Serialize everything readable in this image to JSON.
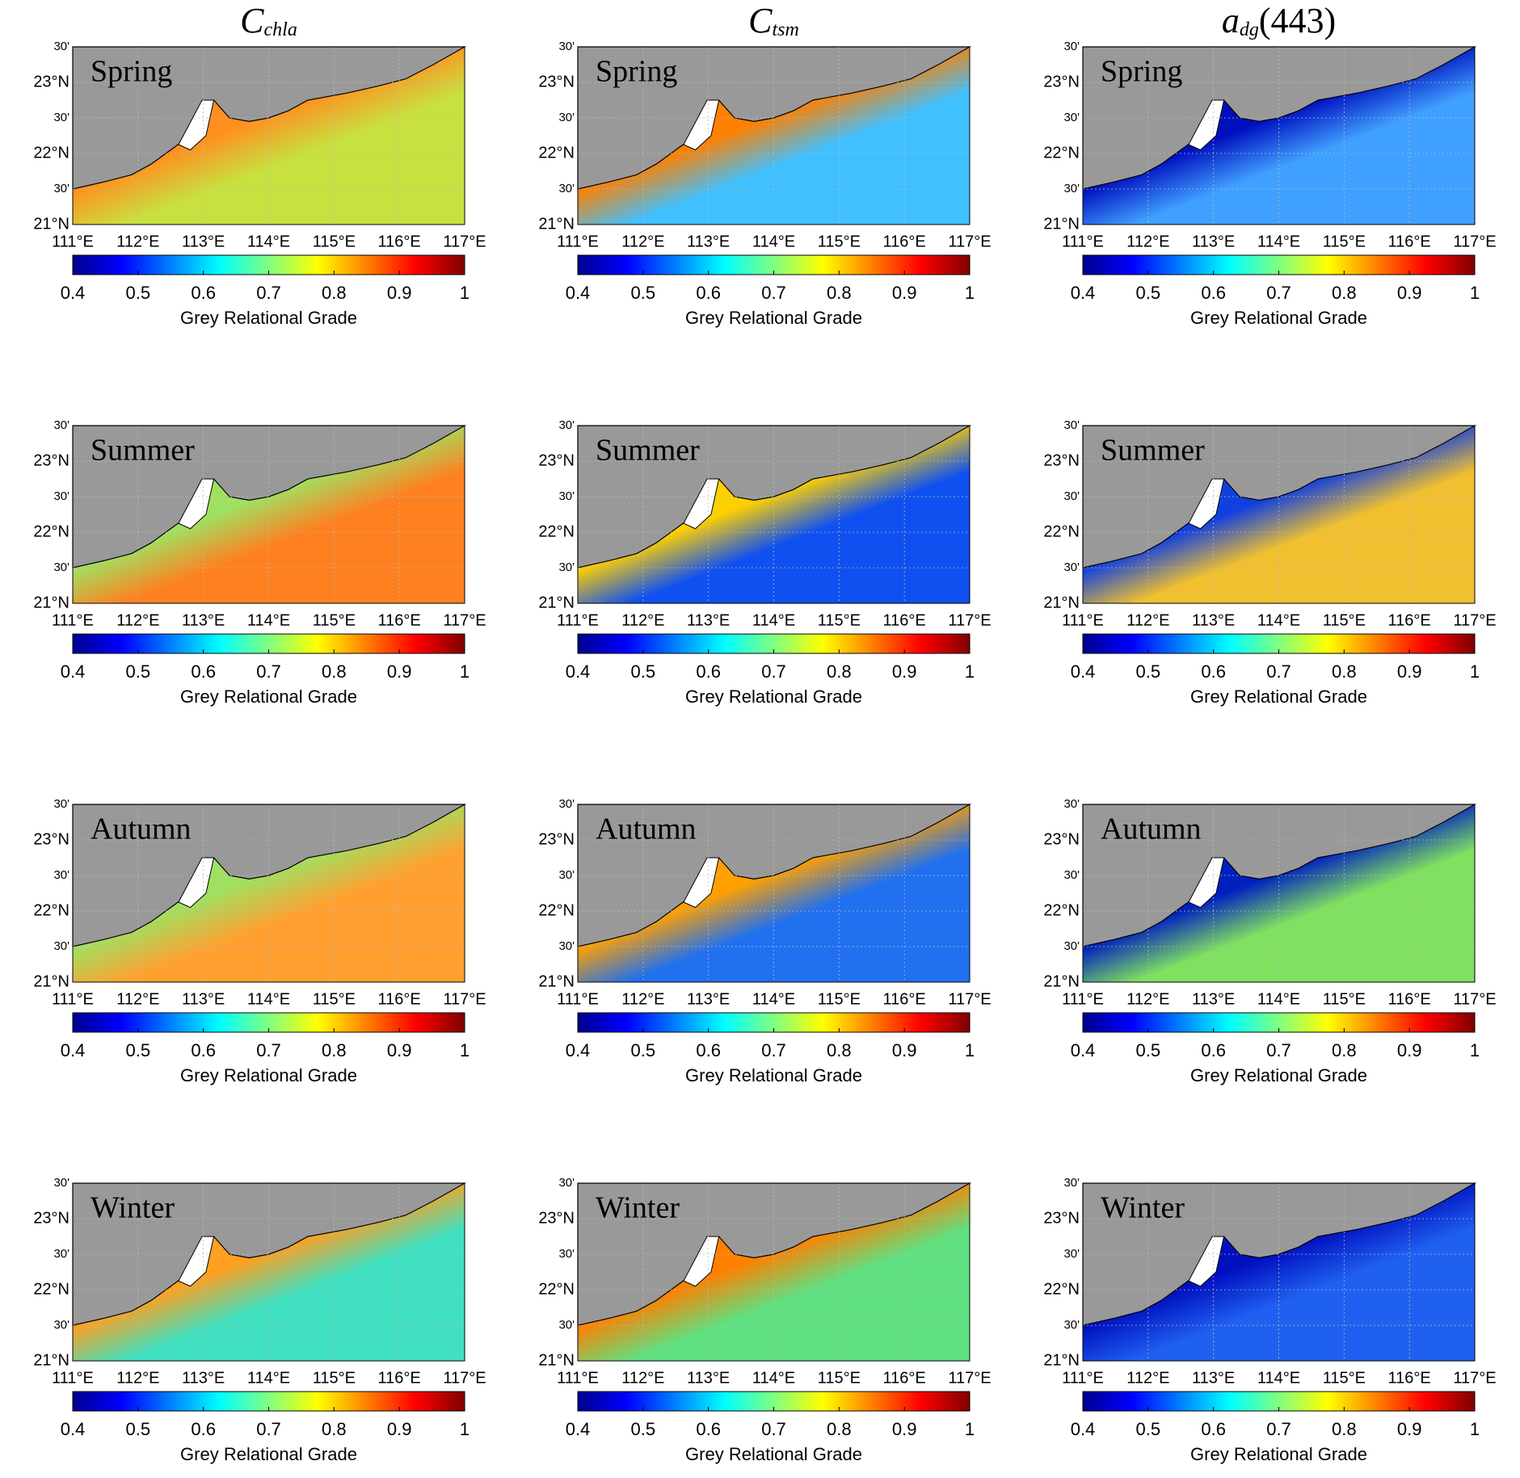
{
  "columns": [
    {
      "symbol": "C",
      "subscript": "chla"
    },
    {
      "symbol": "C",
      "subscript": "tsm"
    },
    {
      "symbol": "a",
      "subscript": "dg",
      "suffix": "(443)"
    }
  ],
  "seasons": [
    "Spring",
    "Summer",
    "Autumn",
    "Winter"
  ],
  "map": {
    "lon_range": [
      111,
      117
    ],
    "lat_range": [
      21,
      23.5
    ],
    "lon_ticks": [
      {
        "value": 111,
        "label": "111°E"
      },
      {
        "value": 112,
        "label": "112°E"
      },
      {
        "value": 113,
        "label": "113°E"
      },
      {
        "value": 114,
        "label": "114°E"
      },
      {
        "value": 115,
        "label": "115°E"
      },
      {
        "value": 116,
        "label": "116°E"
      },
      {
        "value": 117,
        "label": "117°E"
      }
    ],
    "lat_ticks": [
      {
        "value": 21,
        "label": "21°N"
      },
      {
        "value": 21.5,
        "label": "30'"
      },
      {
        "value": 22,
        "label": "22°N"
      },
      {
        "value": 22.5,
        "label": "30'"
      },
      {
        "value": 23,
        "label": "23°N"
      },
      {
        "value": 23.5,
        "label": "30'"
      }
    ],
    "land_color": "#999999",
    "grid": true
  },
  "colorbar": {
    "range": [
      0.4,
      1
    ],
    "ticks": [
      0.4,
      0.5,
      0.6,
      0.7,
      0.8,
      0.9,
      1
    ],
    "label": "Grey Relational Grade",
    "colormap": [
      "#00008f",
      "#0000ff",
      "#0080ff",
      "#00ffff",
      "#80ff80",
      "#ffff00",
      "#ff8000",
      "#ff0000",
      "#800000"
    ]
  },
  "fields": [
    [
      [
        "#ff9020",
        "#c8e040"
      ],
      [
        "#ff8000",
        "#40c0ff"
      ],
      [
        "#0010c0",
        "#40a0ff"
      ]
    ],
    [
      [
        "#a0e060",
        "#ff8020"
      ],
      [
        "#ffd000",
        "#1050f0"
      ],
      [
        "#1040e0",
        "#f0c030"
      ]
    ],
    [
      [
        "#a0e060",
        "#ffa030"
      ],
      [
        "#ffa000",
        "#2070f0"
      ],
      [
        "#0020c0",
        "#80e060"
      ]
    ],
    [
      [
        "#ffa020",
        "#40e0c0"
      ],
      [
        "#ff8000",
        "#60e080"
      ],
      [
        "#0010c0",
        "#2060f0"
      ]
    ]
  ]
}
